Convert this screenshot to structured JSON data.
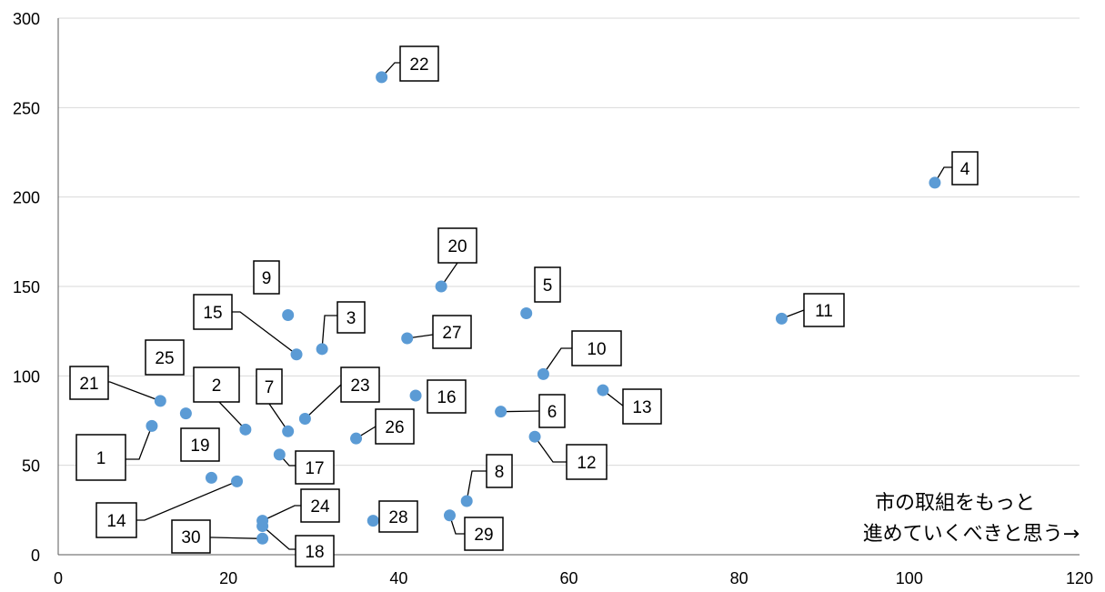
{
  "chart_data": {
    "type": "scatter",
    "xlim": [
      0,
      120
    ],
    "ylim": [
      0,
      300
    ],
    "x_ticks": [
      0,
      20,
      40,
      60,
      80,
      100,
      120
    ],
    "y_ticks": [
      0,
      50,
      100,
      150,
      200,
      250,
      300
    ],
    "grid": "horizontal",
    "color": "#5b9bd5",
    "annotation": [
      "市の取組をもっと",
      "進めていくべきと思う→"
    ],
    "points": [
      {
        "label": "1",
        "x": 11,
        "y": 72
      },
      {
        "label": "2",
        "x": 22,
        "y": 70
      },
      {
        "label": "3",
        "x": 31,
        "y": 115
      },
      {
        "label": "4",
        "x": 103,
        "y": 208
      },
      {
        "label": "5",
        "x": 55,
        "y": 135
      },
      {
        "label": "6",
        "x": 52,
        "y": 80
      },
      {
        "label": "7",
        "x": 27,
        "y": 69
      },
      {
        "label": "8",
        "x": 48,
        "y": 30
      },
      {
        "label": "9",
        "x": 27,
        "y": 134
      },
      {
        "label": "10",
        "x": 57,
        "y": 101
      },
      {
        "label": "11",
        "x": 85,
        "y": 132
      },
      {
        "label": "12",
        "x": 56,
        "y": 66
      },
      {
        "label": "13",
        "x": 64,
        "y": 92
      },
      {
        "label": "14",
        "x": 21,
        "y": 41
      },
      {
        "label": "15",
        "x": 28,
        "y": 112
      },
      {
        "label": "16",
        "x": 42,
        "y": 89
      },
      {
        "label": "17",
        "x": 26,
        "y": 56
      },
      {
        "label": "18",
        "x": 24,
        "y": 16
      },
      {
        "label": "19",
        "x": 18,
        "y": 43
      },
      {
        "label": "20",
        "x": 45,
        "y": 150
      },
      {
        "label": "21",
        "x": 12,
        "y": 86
      },
      {
        "label": "22",
        "x": 38,
        "y": 267
      },
      {
        "label": "23",
        "x": 29,
        "y": 76
      },
      {
        "label": "24",
        "x": 24,
        "y": 19
      },
      {
        "label": "25",
        "x": 15,
        "y": 79
      },
      {
        "label": "26",
        "x": 35,
        "y": 65
      },
      {
        "label": "27",
        "x": 41,
        "y": 121
      },
      {
        "label": "28",
        "x": 37,
        "y": 19
      },
      {
        "label": "29",
        "x": 46,
        "y": 22
      },
      {
        "label": "30",
        "x": 24,
        "y": 9
      }
    ]
  }
}
